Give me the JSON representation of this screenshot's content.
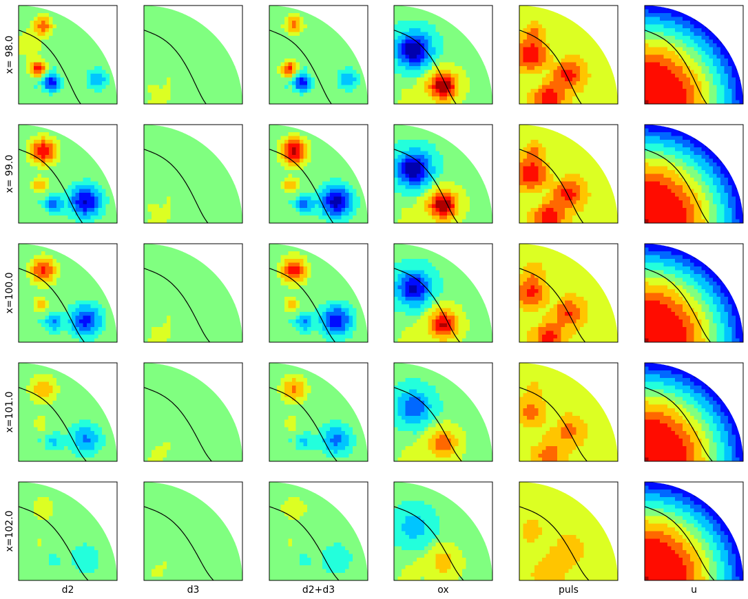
{
  "chart_data": {
    "type": "heatmap",
    "layout": "grid",
    "shape": "quarter-disk",
    "colormap": "jet",
    "rows": [
      "x= 98.0",
      "x= 99.0",
      "x=100.0",
      "x=101.0",
      "x=102.0"
    ],
    "columns": [
      "d2",
      "d3",
      "d2+d3",
      "ox",
      "puls",
      "u"
    ],
    "ticks": false,
    "contour_line": "black curve in each panel"
  },
  "colors": {
    "low": "#00008f",
    "mid": "#7fff7f",
    "high": "#8f0000",
    "line": "#000000"
  }
}
